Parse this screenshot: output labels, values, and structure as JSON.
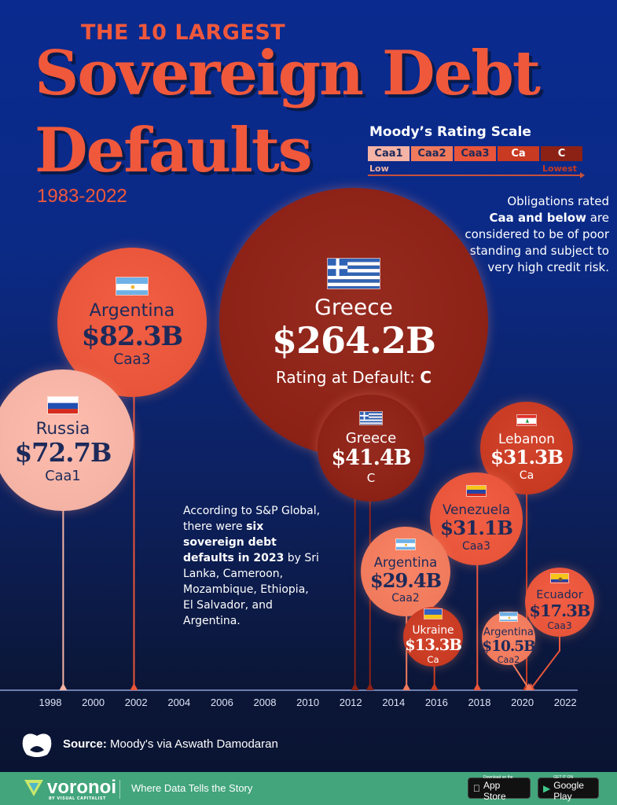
{
  "header": {
    "kicker": "THE 10 LARGEST",
    "title_line1": "Sovereign Debt",
    "title_line2": "Defaults",
    "period": "1983-2022"
  },
  "rating_scale": {
    "title": "Moody’s Rating Scale",
    "levels": [
      {
        "label": "Caa1",
        "color": "#f4b3a4",
        "text": "#1d2a5a"
      },
      {
        "label": "Caa2",
        "color": "#f07a5c",
        "text": "#1d2a5a"
      },
      {
        "label": "Caa3",
        "color": "#e8553a",
        "text": "#1d2a5a"
      },
      {
        "label": "Ca",
        "color": "#c83a22",
        "text": "#ffffff"
      },
      {
        "label": "C",
        "color": "#8c2116",
        "text": "#ffffff"
      }
    ],
    "low_label": "Low",
    "lowest_label": "Lowest"
  },
  "note": {
    "pre": "Obligations rated",
    "bold": "Caa and below",
    "post": "are considered to be of poor standing and subject to very high credit risk."
  },
  "annotation": {
    "pre": "According to S&P Global, there were",
    "bold": "six sovereign debt defaults in 2023",
    "post": "by Sri Lanka, Cameroon, Mozambique, Ethiopia, El Salvador, and Argentina."
  },
  "chart_data": {
    "type": "bubble-timeline",
    "x_axis": {
      "range": [
        1997,
        2023
      ],
      "ticks": [
        "1998",
        "2000",
        "2002",
        "2004",
        "2006",
        "2008",
        "2010",
        "2012",
        "2014",
        "2016",
        "2018",
        "2020",
        "2022"
      ]
    },
    "size_unit": "USD billions",
    "rating_prefix": "Rating at Default: ",
    "points": [
      {
        "country": "Argentina",
        "value": 82.3,
        "value_label": "$82.3B",
        "rating": "Caa3",
        "year": 2001.9,
        "flag": "argentina"
      },
      {
        "country": "Russia",
        "value": 72.7,
        "value_label": "$72.7B",
        "rating": "Caa1",
        "year": 1998.6,
        "flag": "russia"
      },
      {
        "country": "Greece",
        "value": 264.2,
        "value_label": "$264.2B",
        "rating": "C",
        "year": 2012.2,
        "flag": "greece"
      },
      {
        "country": "Greece",
        "value": 41.4,
        "value_label": "$41.4B",
        "rating": "C",
        "year": 2012.9,
        "flag": "greece"
      },
      {
        "country": "Lebanon",
        "value": 31.3,
        "value_label": "$31.3B",
        "rating": "Ca",
        "year": 2020.2,
        "flag": "lebanon"
      },
      {
        "country": "Venezuela",
        "value": 31.1,
        "value_label": "$31.1B",
        "rating": "Caa3",
        "year": 2017.9,
        "flag": "venezuela"
      },
      {
        "country": "Argentina",
        "value": 29.4,
        "value_label": "$29.4B",
        "rating": "Caa2",
        "year": 2014.6,
        "flag": "argentina"
      },
      {
        "country": "Ecuador",
        "value": 17.3,
        "value_label": "$17.3B",
        "rating": "Caa3",
        "year": 2020.4,
        "flag": "ecuador"
      },
      {
        "country": "Ukraine",
        "value": 13.3,
        "value_label": "$13.3B",
        "rating": "Ca",
        "year": 2015.9,
        "flag": "ukraine"
      },
      {
        "country": "Argentina",
        "value": 10.5,
        "value_label": "$10.5B",
        "rating": "Caa2",
        "year": 2020.3,
        "flag": "argentina"
      }
    ]
  },
  "source": {
    "label": "Source:",
    "text": "Moody's via Aswath Damodaran"
  },
  "footer": {
    "brand": "voronoi",
    "brand_sub": "BY VISUAL CAPITALIST",
    "tagline": "Where Data Tells the Story",
    "app_store_small": "Download on the",
    "app_store": "App Store",
    "google_small": "GET IT ON",
    "google": "Google Play",
    "color": "#42a57c"
  }
}
